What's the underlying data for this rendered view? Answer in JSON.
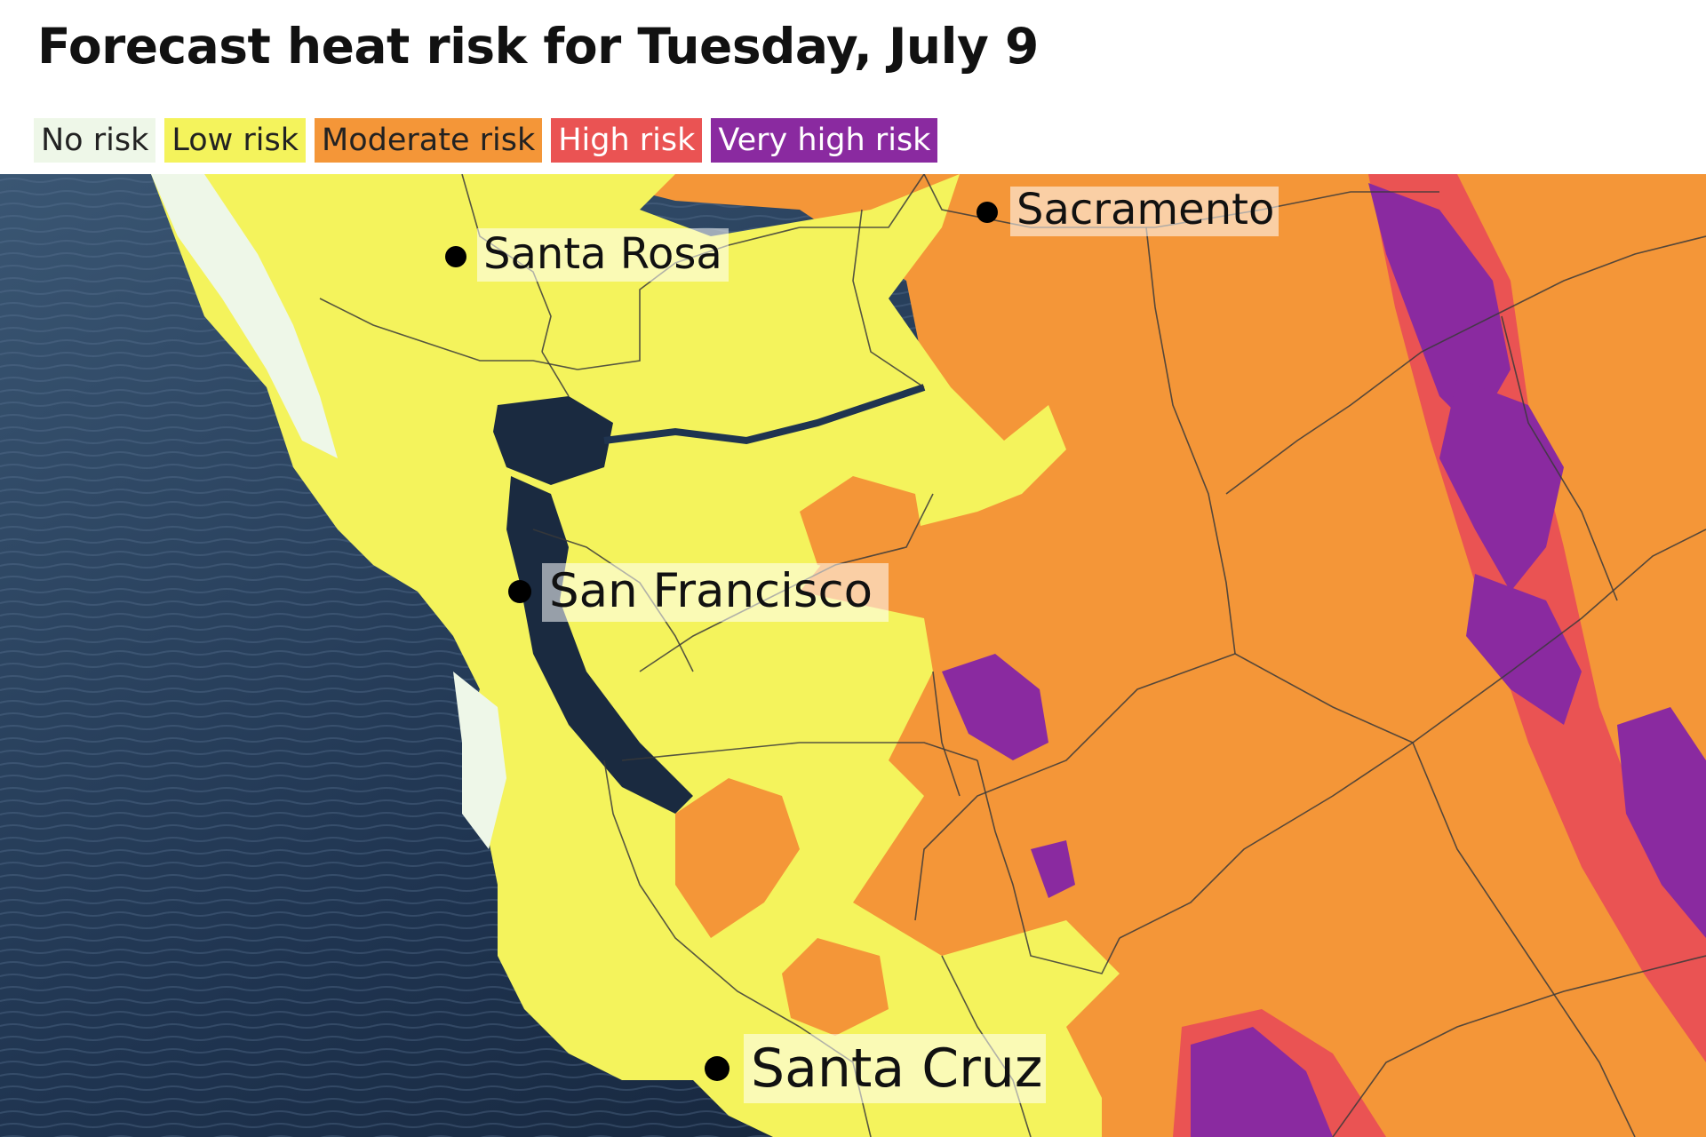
{
  "title": "Forecast heat risk for Tuesday, July 9",
  "legend": [
    {
      "label": "No risk",
      "color": "#eef7e8",
      "text_color": "#222222"
    },
    {
      "label": "Low risk",
      "color": "#f4f35c",
      "text_color": "#222222"
    },
    {
      "label": "Moderate risk",
      "color": "#f49638",
      "text_color": "#222222"
    },
    {
      "label": "High risk",
      "color": "#ea5353",
      "text_color": "#ffffff"
    },
    {
      "label": "Very high risk",
      "color": "#8a2aa0",
      "text_color": "#ffffff"
    }
  ],
  "cities": [
    {
      "name": "Sacramento"
    },
    {
      "name": "Santa Rosa"
    },
    {
      "name": "San Francisco"
    },
    {
      "name": "Santa Cruz"
    }
  ],
  "colors": {
    "ocean": "#1a2a40",
    "no_risk": "#eef7e8",
    "low": "#f4f35c",
    "moderate": "#f49638",
    "high": "#ea5353",
    "very_high": "#8a2aa0",
    "boundary": "#3a3a3a"
  }
}
